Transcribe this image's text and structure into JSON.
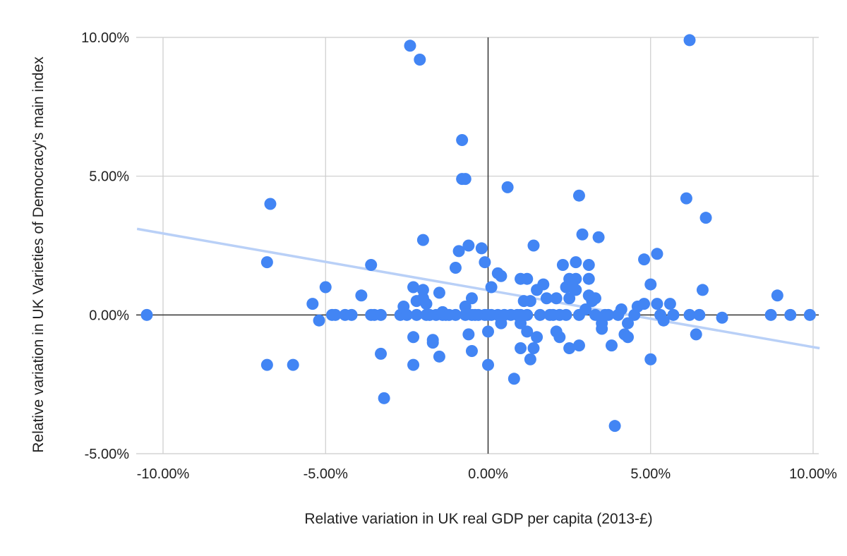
{
  "chart_data": {
    "type": "scatter",
    "title": "",
    "xlabel": "Relative variation in UK real GDP per capita (2013-£)",
    "ylabel": "Relative variation in UK Varieties of Democracy's main index",
    "xlim": [
      -0.1,
      0.1
    ],
    "ylim": [
      -0.05,
      0.1
    ],
    "x_ticks": [
      -0.1,
      -0.05,
      0.0,
      0.05,
      0.1
    ],
    "x_tick_labels": [
      "-10.00%",
      "-5.00%",
      "0.00%",
      "5.00%",
      "10.00%"
    ],
    "y_ticks": [
      -0.05,
      0.0,
      0.05,
      0.1
    ],
    "y_tick_labels": [
      "-5.00%",
      "0.00%",
      "5.00%",
      "10.00%"
    ],
    "grid": true,
    "colors": {
      "points": "#4285f4",
      "trendline": "#b9d0f7",
      "grid": "#cccccc",
      "zero_axis": "#333333"
    },
    "trendline": {
      "type": "linear",
      "x": [
        -0.108,
        0.102
      ],
      "y": [
        0.031,
        -0.012
      ]
    },
    "series": [
      {
        "name": "Relative variation in UK Varieties of Democracy's main index",
        "points": [
          [
            -0.105,
            0.0
          ],
          [
            -0.067,
            0.04
          ],
          [
            -0.068,
            0.019
          ],
          [
            -0.068,
            -0.018
          ],
          [
            -0.06,
            -0.018
          ],
          [
            -0.054,
            0.004
          ],
          [
            -0.052,
            -0.002
          ],
          [
            -0.05,
            0.01
          ],
          [
            -0.048,
            0.0
          ],
          [
            -0.047,
            0.0
          ],
          [
            -0.044,
            0.0
          ],
          [
            -0.042,
            0.0
          ],
          [
            -0.039,
            0.007
          ],
          [
            -0.036,
            0.018
          ],
          [
            -0.036,
            0.0
          ],
          [
            -0.035,
            0.0
          ],
          [
            -0.033,
            0.0
          ],
          [
            -0.033,
            -0.014
          ],
          [
            -0.032,
            -0.03
          ],
          [
            -0.027,
            0.0
          ],
          [
            -0.026,
            0.003
          ],
          [
            -0.025,
            0.0
          ],
          [
            -0.024,
            0.097
          ],
          [
            -0.023,
            0.01
          ],
          [
            -0.023,
            -0.008
          ],
          [
            -0.023,
            -0.018
          ],
          [
            -0.022,
            0.0
          ],
          [
            -0.022,
            0.005
          ],
          [
            -0.021,
            0.092
          ],
          [
            -0.02,
            0.027
          ],
          [
            -0.02,
            0.009
          ],
          [
            -0.02,
            0.006
          ],
          [
            -0.019,
            0.004
          ],
          [
            -0.019,
            0.0
          ],
          [
            -0.018,
            0.0
          ],
          [
            -0.017,
            -0.009
          ],
          [
            -0.017,
            -0.01
          ],
          [
            -0.016,
            0.0
          ],
          [
            -0.015,
            0.008
          ],
          [
            -0.015,
            -0.015
          ],
          [
            -0.014,
            0.001
          ],
          [
            -0.014,
            0.0
          ],
          [
            -0.013,
            0.0
          ],
          [
            -0.012,
            0.0
          ],
          [
            -0.01,
            0.017
          ],
          [
            -0.01,
            0.0
          ],
          [
            -0.009,
            0.023
          ],
          [
            -0.008,
            0.063
          ],
          [
            -0.008,
            0.049
          ],
          [
            -0.007,
            0.049
          ],
          [
            -0.007,
            0.003
          ],
          [
            -0.007,
            0.0
          ],
          [
            -0.006,
            0.025
          ],
          [
            -0.006,
            -0.007
          ],
          [
            -0.005,
            -0.013
          ],
          [
            -0.005,
            0.006
          ],
          [
            -0.005,
            0.0
          ],
          [
            -0.004,
            0.0
          ],
          [
            -0.003,
            0.0
          ],
          [
            -0.002,
            0.024
          ],
          [
            -0.001,
            0.019
          ],
          [
            -0.001,
            0.0
          ],
          [
            0.0,
            -0.006
          ],
          [
            0.0,
            -0.018
          ],
          [
            0.0,
            0.0
          ],
          [
            0.001,
            0.01
          ],
          [
            0.001,
            0.0
          ],
          [
            0.003,
            0.015
          ],
          [
            0.003,
            0.0
          ],
          [
            0.004,
            0.014
          ],
          [
            0.004,
            -0.003
          ],
          [
            0.005,
            0.0
          ],
          [
            0.006,
            0.046
          ],
          [
            0.007,
            0.0
          ],
          [
            0.008,
            -0.023
          ],
          [
            0.009,
            0.0
          ],
          [
            0.01,
            0.013
          ],
          [
            0.01,
            -0.003
          ],
          [
            0.01,
            -0.012
          ],
          [
            0.01,
            0.0
          ],
          [
            0.011,
            0.005
          ],
          [
            0.012,
            0.013
          ],
          [
            0.012,
            -0.006
          ],
          [
            0.012,
            0.0
          ],
          [
            0.013,
            -0.016
          ],
          [
            0.013,
            0.005
          ],
          [
            0.014,
            0.025
          ],
          [
            0.014,
            -0.012
          ],
          [
            0.015,
            0.009
          ],
          [
            0.015,
            -0.008
          ],
          [
            0.016,
            0.0
          ],
          [
            0.017,
            0.011
          ],
          [
            0.018,
            0.006
          ],
          [
            0.019,
            0.0
          ],
          [
            0.02,
            0.0
          ],
          [
            0.021,
            -0.006
          ],
          [
            0.021,
            0.006
          ],
          [
            0.022,
            0.0
          ],
          [
            0.022,
            -0.008
          ],
          [
            0.023,
            0.018
          ],
          [
            0.024,
            0.01
          ],
          [
            0.024,
            0.0
          ],
          [
            0.025,
            0.013
          ],
          [
            0.025,
            0.006
          ],
          [
            0.025,
            -0.012
          ],
          [
            0.026,
            0.01
          ],
          [
            0.027,
            0.019
          ],
          [
            0.027,
            0.013
          ],
          [
            0.027,
            0.009
          ],
          [
            0.028,
            0.043
          ],
          [
            0.028,
            -0.011
          ],
          [
            0.028,
            0.0
          ],
          [
            0.029,
            0.029
          ],
          [
            0.03,
            0.002
          ],
          [
            0.031,
            0.018
          ],
          [
            0.031,
            0.013
          ],
          [
            0.031,
            0.007
          ],
          [
            0.032,
            0.005
          ],
          [
            0.033,
            0.006
          ],
          [
            0.033,
            0.0
          ],
          [
            0.034,
            0.028
          ],
          [
            0.035,
            -0.003
          ],
          [
            0.035,
            -0.005
          ],
          [
            0.036,
            0.0
          ],
          [
            0.037,
            0.0
          ],
          [
            0.038,
            -0.011
          ],
          [
            0.039,
            -0.04
          ],
          [
            0.04,
            0.0
          ],
          [
            0.041,
            0.002
          ],
          [
            0.042,
            -0.007
          ],
          [
            0.043,
            -0.008
          ],
          [
            0.043,
            -0.003
          ],
          [
            0.045,
            0.0
          ],
          [
            0.046,
            0.003
          ],
          [
            0.048,
            0.02
          ],
          [
            0.048,
            0.004
          ],
          [
            0.05,
            0.011
          ],
          [
            0.05,
            -0.016
          ],
          [
            0.052,
            0.022
          ],
          [
            0.052,
            0.004
          ],
          [
            0.053,
            0.0
          ],
          [
            0.054,
            -0.002
          ],
          [
            0.056,
            0.004
          ],
          [
            0.057,
            0.0
          ],
          [
            0.061,
            0.042
          ],
          [
            0.062,
            0.099
          ],
          [
            0.062,
            0.0
          ],
          [
            0.064,
            -0.007
          ],
          [
            0.065,
            0.0
          ],
          [
            0.066,
            0.009
          ],
          [
            0.067,
            0.035
          ],
          [
            0.072,
            -0.001
          ],
          [
            0.087,
            0.0
          ],
          [
            0.089,
            0.007
          ],
          [
            0.093,
            0.0
          ],
          [
            0.099,
            0.0
          ]
        ]
      }
    ]
  }
}
